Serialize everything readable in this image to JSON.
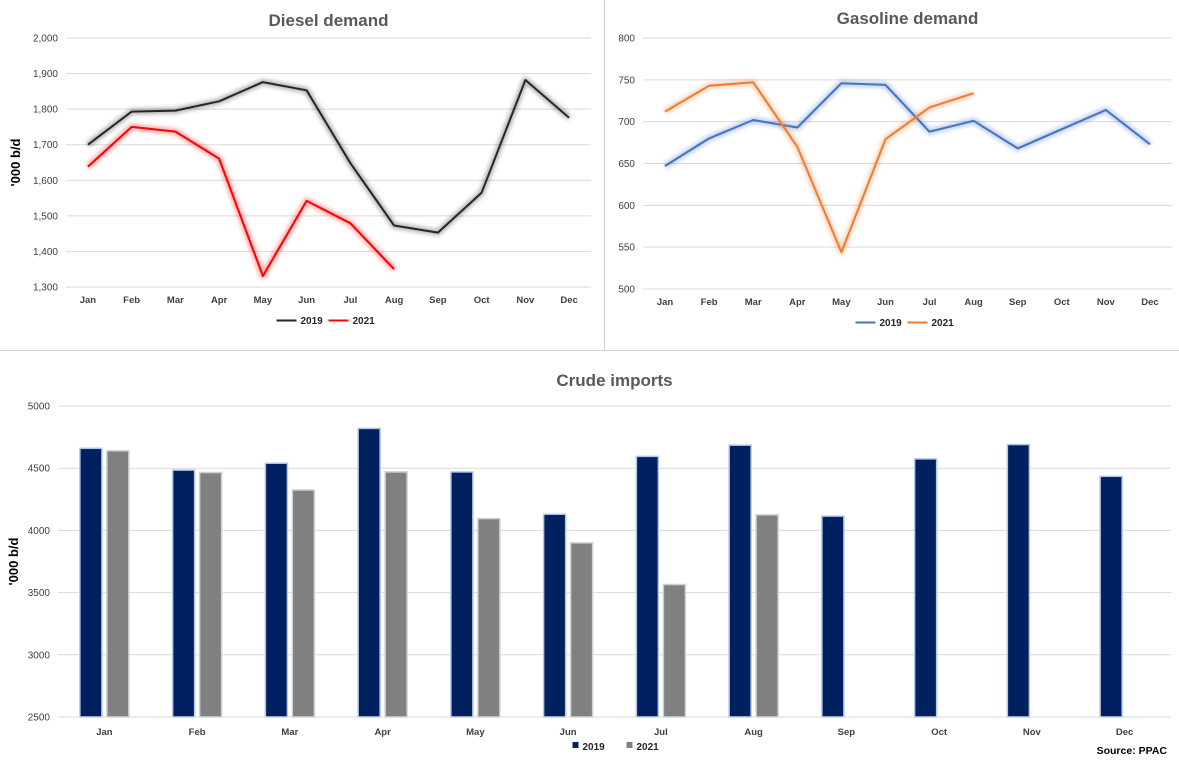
{
  "chart_data": [
    {
      "id": "diesel",
      "type": "line",
      "title": "Diesel demand",
      "ylabel": "'000 b/d",
      "xlabel": "",
      "ylim": [
        1300,
        2000
      ],
      "yticks": [
        1300,
        1400,
        1500,
        1600,
        1700,
        1800,
        1900,
        2000
      ],
      "ytick_labels": [
        "1,300",
        "1,400",
        "1,500",
        "1,600",
        "1,700",
        "1,800",
        "1,900",
        "2,000"
      ],
      "categories": [
        "Jan",
        "Feb",
        "Mar",
        "Apr",
        "May",
        "Jun",
        "Jul",
        "Aug",
        "Sep",
        "Oct",
        "Nov",
        "Dec"
      ],
      "series": [
        {
          "name": "2019",
          "color": "#262626",
          "values": [
            1700,
            1793,
            1796,
            1822,
            1876,
            1853,
            1648,
            1473,
            1453,
            1565,
            1882,
            1776
          ]
        },
        {
          "name": "2021",
          "color": "#ff0000",
          "values": [
            1638,
            1750,
            1737,
            1661,
            1331,
            1542,
            1479,
            1350,
            null,
            null,
            null,
            null
          ]
        }
      ],
      "grid": true,
      "legend": "bottom-center"
    },
    {
      "id": "gasoline",
      "type": "line",
      "title": "Gasoline demand",
      "ylabel": "",
      "xlabel": "",
      "ylim": [
        500,
        800
      ],
      "yticks": [
        500,
        550,
        600,
        650,
        700,
        750,
        800
      ],
      "ytick_labels": [
        "500",
        "550",
        "600",
        "650",
        "700",
        "750",
        "800"
      ],
      "categories": [
        "Jan",
        "Feb",
        "Mar",
        "Apr",
        "May",
        "Jun",
        "Jul",
        "Aug",
        "Sep",
        "Oct",
        "Nov",
        "Dec"
      ],
      "series": [
        {
          "name": "2019",
          "color": "#4472c4",
          "values": [
            647,
            680,
            702,
            693,
            746,
            744,
            688,
            701,
            668,
            691,
            714,
            673
          ]
        },
        {
          "name": "2021",
          "color": "#ed7d31",
          "values": [
            712,
            743,
            747,
            670,
            544,
            679,
            717,
            734,
            null,
            null,
            null,
            null
          ]
        }
      ],
      "grid": true,
      "legend": "bottom-center"
    },
    {
      "id": "crude",
      "type": "bar",
      "title": "Crude imports",
      "ylabel": "'000 b/d",
      "xlabel": "",
      "ylim": [
        2500,
        5000
      ],
      "yticks": [
        2500,
        3000,
        3500,
        4000,
        4500,
        5000
      ],
      "ytick_labels": [
        "2500",
        "3000",
        "3500",
        "4000",
        "4500",
        "5000"
      ],
      "categories": [
        "Jan",
        "Feb",
        "Mar",
        "Apr",
        "May",
        "Jun",
        "Jul",
        "Aug",
        "Sep",
        "Oct",
        "Nov",
        "Dec"
      ],
      "series": [
        {
          "name": "2019",
          "color": "#002060",
          "values": [
            4660,
            4485,
            4540,
            4820,
            4470,
            4130,
            4595,
            4685,
            4115,
            4575,
            4690,
            4435
          ]
        },
        {
          "name": "2021",
          "color": "#808080",
          "values": [
            4640,
            4465,
            4325,
            4470,
            4095,
            3900,
            3565,
            4125,
            null,
            null,
            null,
            null
          ]
        }
      ],
      "grid": true,
      "legend": "bottom-center"
    }
  ],
  "source": "Source: PPAC"
}
